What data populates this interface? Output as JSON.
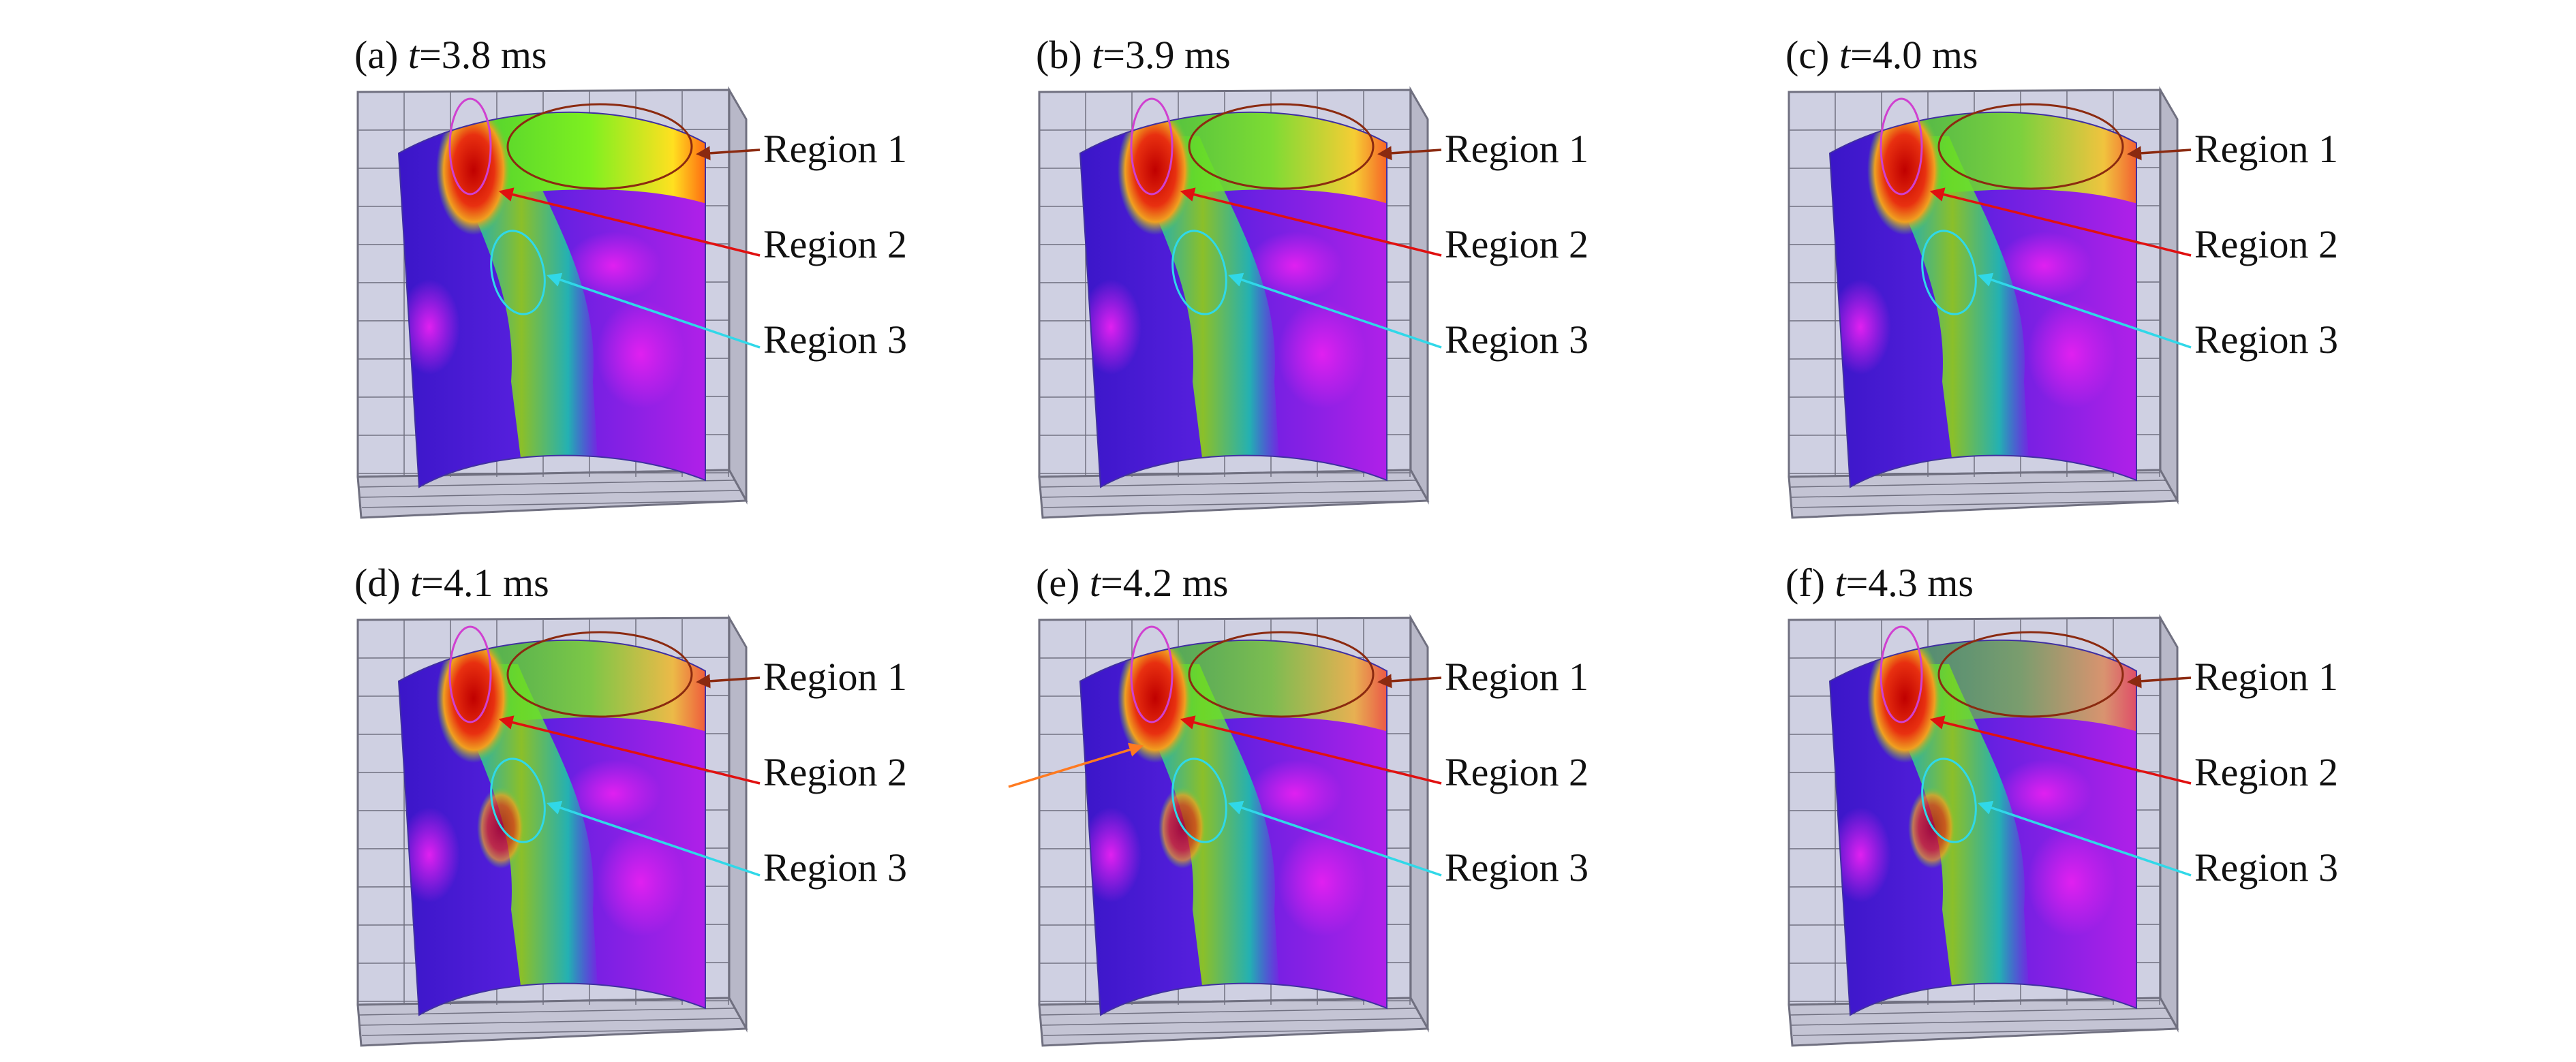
{
  "figure": {
    "panels": [
      {
        "letter": "(a)",
        "var": "t",
        "rest": "=3.8 ms"
      },
      {
        "letter": "(b)",
        "var": "t",
        "rest": "=3.9 ms"
      },
      {
        "letter": "(c)",
        "var": "t",
        "rest": "=4.0 ms"
      },
      {
        "letter": "(d)",
        "var": "t",
        "rest": "=4.1 ms"
      },
      {
        "letter": "(e)",
        "var": "t",
        "rest": "=4.2 ms"
      },
      {
        "letter": "(f)",
        "var": "t",
        "rest": "=4.3 ms"
      }
    ],
    "region_labels": [
      "Region 1",
      "Region 2",
      "Region 3"
    ],
    "colors": {
      "region1": "#8b2a10",
      "region2": "#e01010",
      "region3": "#30d8e8",
      "top_ellipse": "#d040d0",
      "extra_arrow": "#ff7a20",
      "box_fill": "#cfd0e2",
      "grid_line": "#707080"
    }
  }
}
